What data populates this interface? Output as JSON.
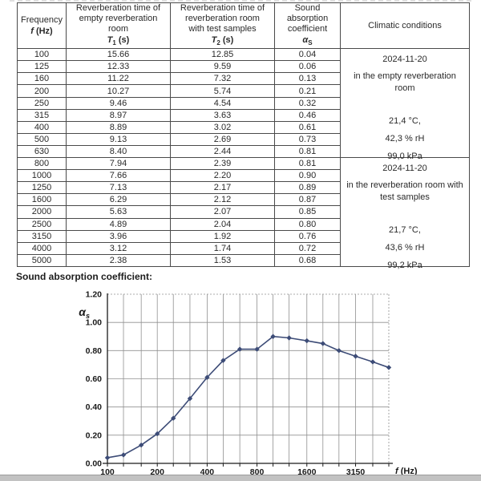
{
  "section_title": "Sound absorption coefficient:",
  "table": {
    "headers": [
      {
        "lines": [
          "Frequency"
        ],
        "sym": "f",
        "sub": "",
        "rest": "(Hz)"
      },
      {
        "lines": [
          "Reverberation time of",
          "empty reverberation",
          "room"
        ],
        "sym": "T",
        "sub": "1",
        "rest": "(s)"
      },
      {
        "lines": [
          "Reverberation time of",
          "reverberation room",
          "with test samples"
        ],
        "sym": "T",
        "sub": "2",
        "rest": "(s)"
      },
      {
        "lines": [
          "Sound",
          "absorption",
          "coefficient"
        ],
        "sym": "α",
        "sub": "S",
        "rest": ""
      },
      {
        "lines": [
          "Climatic conditions"
        ],
        "sym": "",
        "sub": "",
        "rest": ""
      }
    ],
    "rows": [
      [
        "100",
        "15.66",
        "12.85",
        "0.04"
      ],
      [
        "125",
        "12.33",
        "9.59",
        "0.06"
      ],
      [
        "160",
        "11.22",
        "7.32",
        "0.13"
      ],
      [
        "200",
        "10.27",
        "5.74",
        "0.21"
      ],
      [
        "250",
        "9.46",
        "4.54",
        "0.32"
      ],
      [
        "315",
        "8.97",
        "3.63",
        "0.46"
      ],
      [
        "400",
        "8.89",
        "3.02",
        "0.61"
      ],
      [
        "500",
        "9.13",
        "2.69",
        "0.73"
      ],
      [
        "630",
        "8.40",
        "2.44",
        "0.81"
      ],
      [
        "800",
        "7.94",
        "2.39",
        "0.81"
      ],
      [
        "1000",
        "7.66",
        "2.20",
        "0.90"
      ],
      [
        "1250",
        "7.13",
        "2.17",
        "0.89"
      ],
      [
        "1600",
        "6.29",
        "2.12",
        "0.87"
      ],
      [
        "2000",
        "5.63",
        "2.07",
        "0.85"
      ],
      [
        "2500",
        "4.89",
        "2.04",
        "0.80"
      ],
      [
        "3150",
        "3.96",
        "1.92",
        "0.76"
      ],
      [
        "4000",
        "3.12",
        "1.74",
        "0.72"
      ],
      [
        "5000",
        "2.38",
        "1.53",
        "0.68"
      ]
    ],
    "climate_blocks": [
      {
        "date": "2024-11-20",
        "location": "in the empty reverberation room",
        "values": [
          "21,4 °C,",
          "42,3 % rH",
          "99,0 kPa"
        ]
      },
      {
        "date": "2024-11-20",
        "location": "in the reverberation room with test samples",
        "values": [
          "21,7 °C,",
          "43,6 % rH",
          "99,2 kPa"
        ]
      }
    ]
  },
  "chart_data": {
    "type": "line",
    "title": "Sound absorption coefficient",
    "x_scale": "log",
    "x": [
      100,
      125,
      160,
      200,
      250,
      315,
      400,
      500,
      630,
      800,
      1000,
      1250,
      1600,
      2000,
      2500,
      3150,
      4000,
      5000
    ],
    "values": [
      0.04,
      0.06,
      0.13,
      0.21,
      0.32,
      0.46,
      0.61,
      0.73,
      0.81,
      0.81,
      0.9,
      0.89,
      0.87,
      0.85,
      0.8,
      0.76,
      0.72,
      0.68
    ],
    "ylim": [
      0,
      1.2
    ],
    "y_tick_labels": [
      "0.00",
      "0.20",
      "0.40",
      "0.60",
      "0.80",
      "1.00",
      "1.20"
    ],
    "y_ticks": [
      0,
      0.2,
      0.4,
      0.6,
      0.8,
      1.0,
      1.2
    ],
    "x_tick_values": [
      100,
      200,
      400,
      800,
      1600,
      3150
    ],
    "x_tick_labels": [
      "100",
      "200",
      "400",
      "800",
      "1600",
      "3150"
    ],
    "xlabel_sym": "f",
    "xlabel_rest": " (Hz)",
    "ylabel_sym": "α",
    "ylabel_sub": "s",
    "grid": true,
    "legend": "none",
    "marker": "diamond",
    "line_color": "#3d4c77",
    "grid_color": "#909090",
    "axis_color": "#1a1a1a"
  }
}
